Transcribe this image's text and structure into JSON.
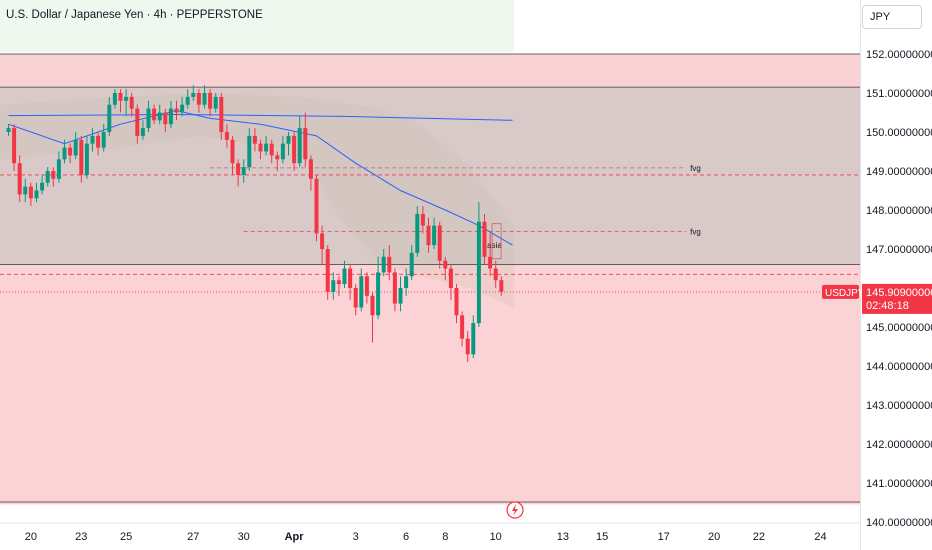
{
  "header": {
    "symbol_title": "U.S. Dollar / Japanese Yen · 4h · PEPPERSTONE",
    "currency": "JPY"
  },
  "price_badge": {
    "symbol": "USDJPY",
    "price": "145.909000000",
    "countdown": "02:48:18",
    "color": "#f23645"
  },
  "colors": {
    "up": "#089981",
    "down": "#f23645",
    "ma": "#2962ff",
    "zone": "#f7b6bd"
  },
  "chart_data": {
    "type": "candlestick",
    "y_ticks": [
      "152.000000000",
      "151.000000000",
      "150.000000000",
      "149.000000000",
      "148.000000000",
      "147.000000000",
      "145.000000000",
      "144.000000000",
      "143.000000000",
      "142.000000000",
      "141.000000000",
      "140.000000000"
    ],
    "y_tick_values": [
      152,
      151,
      150,
      149,
      148,
      147,
      145,
      144,
      143,
      142,
      141,
      140
    ],
    "ylim": [
      140,
      152.8
    ],
    "x_ticks": [
      "20",
      "23",
      "25",
      "27",
      "30",
      "Apr",
      "3",
      "6",
      "8",
      "10",
      "13",
      "15",
      "17",
      "20",
      "22",
      "24"
    ],
    "x_tick_index": [
      4,
      13,
      21,
      33,
      42,
      51,
      62,
      71,
      78,
      87,
      99,
      106,
      117,
      126,
      134,
      145
    ],
    "x_bold": [
      "Apr"
    ],
    "annotations": [
      {
        "text": "fvg",
        "price": 149.08,
        "start": 36,
        "end": 121
      },
      {
        "text": "fvg",
        "price": 147.45,
        "start": 42,
        "end": 121
      },
      {
        "text": "asia",
        "price": 147.1,
        "start": 86,
        "end": 86
      }
    ],
    "levels": [
      {
        "price": 148.9,
        "style": "dashed"
      },
      {
        "price": 146.35,
        "style": "dashed"
      },
      {
        "price": 145.9,
        "style": "dotted"
      }
    ],
    "zones": [
      {
        "top": 152.0,
        "bottom": 151.15
      },
      {
        "top": 151.15,
        "bottom": 146.6
      },
      {
        "top": 146.6,
        "bottom": 140.45
      }
    ],
    "ma_long": [
      [
        0,
        150.42
      ],
      [
        30,
        150.45
      ],
      [
        60,
        150.4
      ],
      [
        90,
        150.3
      ]
    ],
    "ma_short": [
      [
        0,
        150.2
      ],
      [
        10,
        149.7
      ],
      [
        20,
        150.2
      ],
      [
        30,
        150.55
      ],
      [
        36,
        150.35
      ],
      [
        45,
        150.2
      ],
      [
        55,
        149.9
      ],
      [
        62,
        149.2
      ],
      [
        70,
        148.5
      ],
      [
        78,
        148.0
      ],
      [
        84,
        147.6
      ],
      [
        90,
        147.1
      ]
    ],
    "candles": [
      [
        150.0,
        150.1,
        150.2,
        149.9
      ],
      [
        150.1,
        149.2,
        150.2,
        149.0
      ],
      [
        149.2,
        148.4,
        149.4,
        148.2
      ],
      [
        148.4,
        148.6,
        148.8,
        148.2
      ],
      [
        148.6,
        148.3,
        148.7,
        148.1
      ],
      [
        148.3,
        148.5,
        148.7,
        148.2
      ],
      [
        148.5,
        148.7,
        148.9,
        148.4
      ],
      [
        148.7,
        149.0,
        149.1,
        148.6
      ],
      [
        149.0,
        148.8,
        149.1,
        148.6
      ],
      [
        148.8,
        149.3,
        149.5,
        148.7
      ],
      [
        149.3,
        149.6,
        149.8,
        149.2
      ],
      [
        149.6,
        149.4,
        149.7,
        149.2
      ],
      [
        149.4,
        149.8,
        150.0,
        149.3
      ],
      [
        149.8,
        148.9,
        149.9,
        148.7
      ],
      [
        148.9,
        149.7,
        149.9,
        148.8
      ],
      [
        149.7,
        149.9,
        150.1,
        149.5
      ],
      [
        149.9,
        149.6,
        150.0,
        149.4
      ],
      [
        149.6,
        150.0,
        150.2,
        149.5
      ],
      [
        150.0,
        150.7,
        150.9,
        149.9
      ],
      [
        150.7,
        151.0,
        151.1,
        150.6
      ],
      [
        151.0,
        150.8,
        151.1,
        150.5
      ],
      [
        150.8,
        150.9,
        151.1,
        150.4
      ],
      [
        150.9,
        150.6,
        151.0,
        150.4
      ],
      [
        150.6,
        149.9,
        150.7,
        149.7
      ],
      [
        149.9,
        150.1,
        150.3,
        149.8
      ],
      [
        150.1,
        150.6,
        150.8,
        150.0
      ],
      [
        150.6,
        150.3,
        150.7,
        150.2
      ],
      [
        150.3,
        150.5,
        150.7,
        150.2
      ],
      [
        150.5,
        150.2,
        150.6,
        150.0
      ],
      [
        150.2,
        150.6,
        150.8,
        150.1
      ],
      [
        150.6,
        150.5,
        150.8,
        150.3
      ],
      [
        150.5,
        150.7,
        150.9,
        150.4
      ],
      [
        150.7,
        150.9,
        151.1,
        150.6
      ],
      [
        150.9,
        151.0,
        151.2,
        150.8
      ],
      [
        151.0,
        150.7,
        151.1,
        150.5
      ],
      [
        150.7,
        151.0,
        151.2,
        150.6
      ],
      [
        151.0,
        150.6,
        151.1,
        150.4
      ],
      [
        150.6,
        150.9,
        151.0,
        150.5
      ],
      [
        150.9,
        150.0,
        151.0,
        149.8
      ],
      [
        150.0,
        149.8,
        150.2,
        149.6
      ],
      [
        149.8,
        149.2,
        149.9,
        148.9
      ],
      [
        149.2,
        148.9,
        149.3,
        148.6
      ],
      [
        148.9,
        149.1,
        149.3,
        148.7
      ],
      [
        149.1,
        149.9,
        150.1,
        149.0
      ],
      [
        149.9,
        149.7,
        150.1,
        149.5
      ],
      [
        149.7,
        149.5,
        149.8,
        149.3
      ],
      [
        149.5,
        149.7,
        149.9,
        149.4
      ],
      [
        149.7,
        149.4,
        149.8,
        149.2
      ],
      [
        149.4,
        149.3,
        149.5,
        149.0
      ],
      [
        149.3,
        149.7,
        149.9,
        149.2
      ],
      [
        149.7,
        149.9,
        150.0,
        149.4
      ],
      [
        149.9,
        149.2,
        150.0,
        149.0
      ],
      [
        149.2,
        150.1,
        150.4,
        149.1
      ],
      [
        150.1,
        149.3,
        150.5,
        149.1
      ],
      [
        149.3,
        148.8,
        149.4,
        148.5
      ],
      [
        148.8,
        147.4,
        148.9,
        147.2
      ],
      [
        147.4,
        147.0,
        147.6,
        146.6
      ],
      [
        147.0,
        145.9,
        147.1,
        145.7
      ],
      [
        145.9,
        146.2,
        146.4,
        145.7
      ],
      [
        146.2,
        146.1,
        146.3,
        145.8
      ],
      [
        146.1,
        146.5,
        146.7,
        146.0
      ],
      [
        146.5,
        146.0,
        146.6,
        145.7
      ],
      [
        146.0,
        145.5,
        146.1,
        145.3
      ],
      [
        145.5,
        146.3,
        146.5,
        145.4
      ],
      [
        146.3,
        145.8,
        146.4,
        145.6
      ],
      [
        145.8,
        145.3,
        145.9,
        144.6
      ],
      [
        145.3,
        146.4,
        146.8,
        145.2
      ],
      [
        146.4,
        146.8,
        147.0,
        146.3
      ],
      [
        146.8,
        146.4,
        147.1,
        146.2
      ],
      [
        146.4,
        145.6,
        146.5,
        145.4
      ],
      [
        145.6,
        146.0,
        146.3,
        145.4
      ],
      [
        146.0,
        146.3,
        146.5,
        145.8
      ],
      [
        146.3,
        146.9,
        147.1,
        146.2
      ],
      [
        146.9,
        147.9,
        148.1,
        146.8
      ],
      [
        147.9,
        147.6,
        148.1,
        147.4
      ],
      [
        147.6,
        147.1,
        147.8,
        146.9
      ],
      [
        147.1,
        147.6,
        147.8,
        147.0
      ],
      [
        147.6,
        146.7,
        147.7,
        146.5
      ],
      [
        146.7,
        146.5,
        146.8,
        146.2
      ],
      [
        146.5,
        146.0,
        146.6,
        145.7
      ],
      [
        146.0,
        145.3,
        146.1,
        145.1
      ],
      [
        145.3,
        144.7,
        145.4,
        144.5
      ],
      [
        144.7,
        144.3,
        144.9,
        144.1
      ],
      [
        144.3,
        145.1,
        145.3,
        144.2
      ],
      [
        145.1,
        147.7,
        148.2,
        145.0
      ],
      [
        147.7,
        146.8,
        147.9,
        146.6
      ],
      [
        146.8,
        146.5,
        147.4,
        146.3
      ],
      [
        146.5,
        146.2,
        146.7,
        146.0
      ],
      [
        146.2,
        145.9,
        146.3,
        145.8
      ]
    ]
  }
}
